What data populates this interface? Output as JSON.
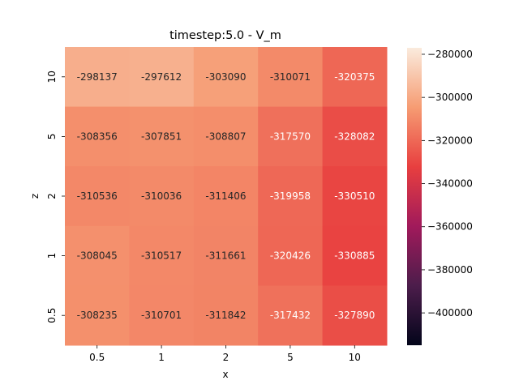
{
  "chart_data": {
    "type": "heatmap",
    "title": "timestep:5.0 - V_m",
    "xlabel": "x",
    "ylabel": "z",
    "x_categories": [
      "0.5",
      "1",
      "2",
      "5",
      "10"
    ],
    "y_categories": [
      "10",
      "5",
      "2",
      "1",
      "0.5"
    ],
    "values": [
      [
        -298137,
        -297612,
        -303090,
        -310071,
        -320375
      ],
      [
        -308356,
        -307851,
        -308807,
        -317570,
        -328082
      ],
      [
        -310536,
        -310036,
        -311406,
        -319958,
        -330510
      ],
      [
        -308045,
        -310517,
        -311661,
        -320426,
        -330885
      ],
      [
        -308235,
        -310701,
        -311842,
        -317432,
        -327890
      ]
    ],
    "colorbar": {
      "vmin": -415000,
      "vmax": -277000,
      "ticks": [
        -280000,
        -300000,
        -320000,
        -340000,
        -360000,
        -380000,
        -400000
      ],
      "tick_labels": [
        "−280000",
        "−300000",
        "−320000",
        "−340000",
        "−360000",
        "−380000",
        "−400000"
      ]
    },
    "colormap": "rocket",
    "colormap_stops": [
      "#03051a",
      "#4c1d4b",
      "#a11a5b",
      "#e83f3f",
      "#f69c73",
      "#faebdd"
    ],
    "annotation_colors": {
      "dark": "#262626",
      "light": "#ffffff"
    }
  }
}
